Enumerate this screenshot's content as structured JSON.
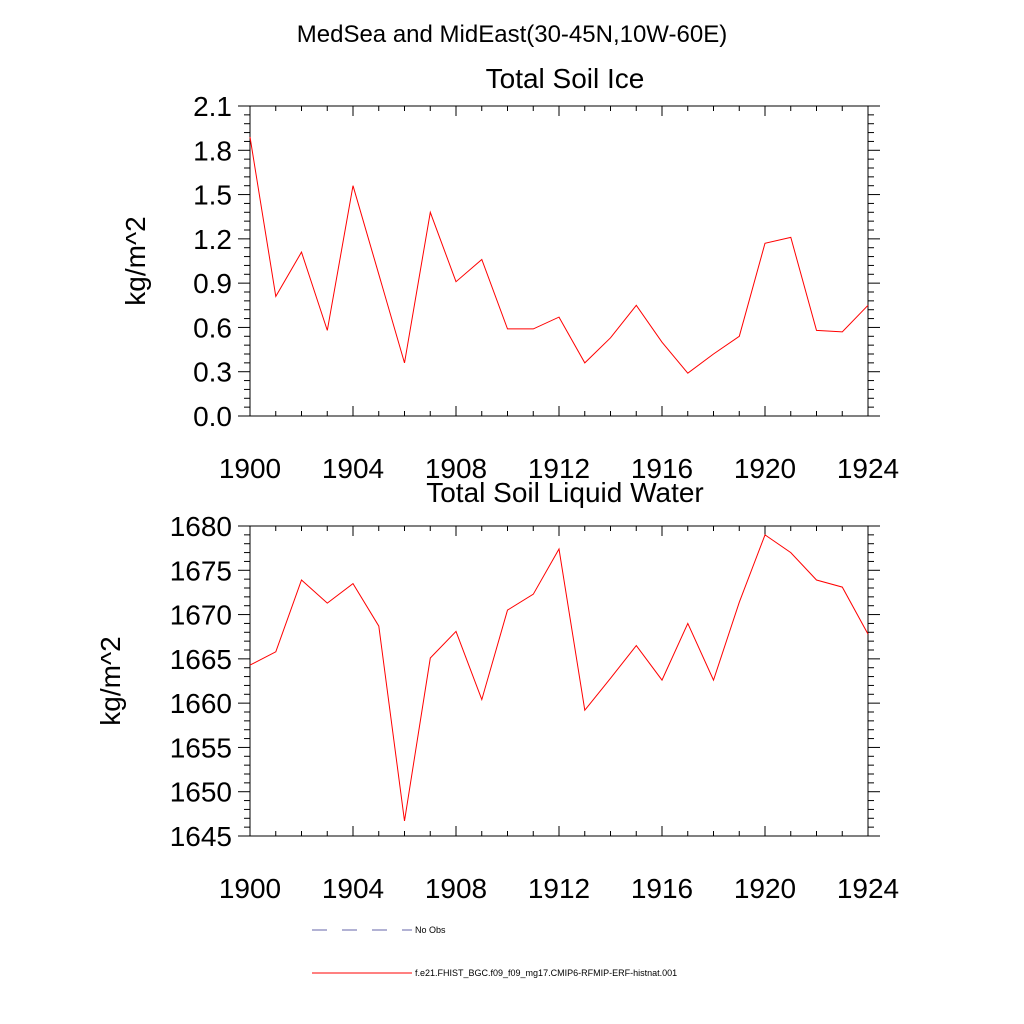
{
  "title": "MedSea and MidEast(30-45N,10W-60E)",
  "chart_data": [
    {
      "type": "line",
      "title": "Total Soil Ice",
      "ylabel": "kg/m^2",
      "xlim": [
        1900,
        1924
      ],
      "ylim": [
        0.0,
        2.1
      ],
      "x_ticks": [
        1900,
        1904,
        1908,
        1912,
        1916,
        1920,
        1924
      ],
      "y_ticks": [
        "0.0",
        "0.3",
        "0.6",
        "0.9",
        "1.2",
        "1.5",
        "1.8",
        "2.1"
      ],
      "series": [
        {
          "color": "#ff0000",
          "x": [
            1900,
            1901,
            1902,
            1903,
            1904,
            1905,
            1906,
            1907,
            1908,
            1909,
            1910,
            1911,
            1912,
            1913,
            1914,
            1915,
            1916,
            1917,
            1918,
            1919,
            1920,
            1921,
            1922,
            1923,
            1924
          ],
          "y": [
            1.89,
            0.81,
            1.11,
            0.58,
            1.56,
            0.96,
            0.36,
            1.38,
            0.91,
            1.06,
            0.59,
            0.59,
            0.67,
            0.36,
            0.53,
            0.75,
            0.5,
            0.29,
            0.42,
            0.54,
            1.17,
            1.21,
            0.58,
            0.57,
            0.75
          ]
        }
      ]
    },
    {
      "type": "line",
      "title": "Total Soil Liquid Water",
      "ylabel": "kg/m^2",
      "xlim": [
        1900,
        1924
      ],
      "ylim": [
        1645,
        1680
      ],
      "x_ticks": [
        1900,
        1904,
        1908,
        1912,
        1916,
        1920,
        1924
      ],
      "y_ticks": [
        "1645",
        "1650",
        "1655",
        "1660",
        "1665",
        "1670",
        "1675",
        "1680"
      ],
      "series": [
        {
          "color": "#ff0000",
          "x": [
            1900,
            1901,
            1902,
            1903,
            1904,
            1905,
            1906,
            1907,
            1908,
            1909,
            1910,
            1911,
            1912,
            1913,
            1914,
            1915,
            1916,
            1917,
            1918,
            1919,
            1920,
            1921,
            1922,
            1923,
            1924
          ],
          "y": [
            1664.3,
            1665.8,
            1673.9,
            1671.3,
            1673.5,
            1668.7,
            1646.7,
            1665.1,
            1668.1,
            1660.4,
            1670.5,
            1672.3,
            1677.4,
            1659.2,
            1662.8,
            1666.5,
            1662.6,
            1669.0,
            1662.6,
            1671.4,
            1679.0,
            1677.0,
            1673.9,
            1673.1,
            1667.8
          ]
        }
      ]
    }
  ],
  "legend": [
    {
      "label": "No Obs",
      "style": "dashed",
      "color": "#6666aa"
    },
    {
      "label": "f.e21.FHIST_BGC.f09_f09_mg17.CMIP6-RFMIP-ERF-histnat.001",
      "style": "solid",
      "color": "#ff0000"
    }
  ]
}
